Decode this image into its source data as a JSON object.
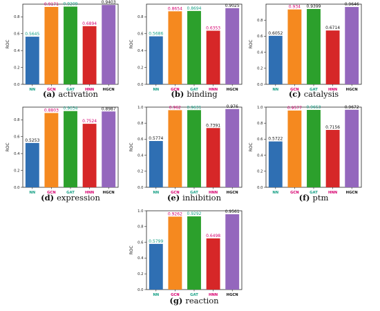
{
  "chart_data": [
    {
      "type": "bar",
      "caption_letter": "(a)",
      "caption_text": "activation",
      "ylabel": "ROC",
      "categories": [
        "NN",
        "GCN",
        "GAT",
        "HNN",
        "HGCN"
      ],
      "values": [
        0.5645,
        0.9171,
        0.9209,
        0.6894,
        0.9403
      ],
      "value_labels": [
        "0.5645",
        "0.9171",
        "0.9209",
        "0.6894",
        "0.9403"
      ],
      "yticks": [
        "0.0",
        "0.2",
        "0.4",
        "0.6",
        "0.8"
      ],
      "ylim": [
        0,
        0.95
      ],
      "grid": false,
      "label_colors": [
        "#16a085",
        "#d6006f",
        "#16a085",
        "#d6006f",
        "#111111"
      ]
    },
    {
      "type": "bar",
      "caption_letter": "(b)",
      "caption_text": "binding",
      "ylabel": "ROC",
      "categories": [
        "NN",
        "GCN",
        "GAT",
        "HNN",
        "HGCN"
      ],
      "values": [
        0.5686,
        0.8654,
        0.8694,
        0.6353,
        0.9025
      ],
      "value_labels": [
        "0.5686",
        "0.8654",
        "0.8694",
        "0.6353",
        "0.9025"
      ],
      "yticks": [
        "0.0",
        "0.2",
        "0.4",
        "0.6",
        "0.8"
      ],
      "ylim": [
        0,
        0.95
      ],
      "grid": false,
      "label_colors": [
        "#16a085",
        "#d6006f",
        "#16a085",
        "#d6006f",
        "#111111"
      ]
    },
    {
      "type": "bar",
      "caption_letter": "(c)",
      "caption_text": "catalysis",
      "ylabel": "ROC",
      "categories": [
        "NN",
        "GCN",
        "GAT",
        "HNN",
        "HGCN"
      ],
      "values": [
        0.6052,
        0.934,
        0.9399,
        0.6714,
        0.9646
      ],
      "value_labels": [
        "0.6052",
        "0.934",
        "0.9399",
        "0.6714",
        "0.9646"
      ],
      "yticks": [
        "0.0",
        "0.2",
        "0.4",
        "0.6",
        "0.8"
      ],
      "ylim": [
        0,
        1.0
      ],
      "grid": false,
      "label_colors": [
        "#111111",
        "#d6006f",
        "#111111",
        "#111111",
        "#111111"
      ]
    },
    {
      "type": "bar",
      "caption_letter": "(d)",
      "caption_text": "expression",
      "ylabel": "ROC",
      "categories": [
        "NN",
        "GCN",
        "GAT",
        "HNN",
        "HGCN"
      ],
      "values": [
        0.5253,
        0.8803,
        0.9034,
        0.7524,
        0.8987
      ],
      "value_labels": [
        "0.5253",
        "0.8803",
        "0.9034",
        "0.7524",
        "0.8987"
      ],
      "yticks": [
        "0.0",
        "0.2",
        "0.4",
        "0.6",
        "0.8"
      ],
      "ylim": [
        0,
        0.95
      ],
      "grid": false,
      "label_colors": [
        "#111111",
        "#d6006f",
        "#16a085",
        "#d6006f",
        "#111111"
      ]
    },
    {
      "type": "bar",
      "caption_letter": "(e)",
      "caption_text": "inhibition",
      "ylabel": "ROC",
      "categories": [
        "NN",
        "GCN",
        "GAT",
        "HNN",
        "HGCN"
      ],
      "values": [
        0.5774,
        0.962,
        0.9631,
        0.7391,
        0.976
      ],
      "value_labels": [
        "0.5774",
        "0.962",
        "0.9631",
        "0.7391",
        "0.976"
      ],
      "yticks": [
        "0.0",
        "0.2",
        "0.4",
        "0.6",
        "0.8",
        "1.0"
      ],
      "ylim": [
        0,
        1.0
      ],
      "grid": false,
      "label_colors": [
        "#111111",
        "#d6006f",
        "#16a085",
        "#111111",
        "#111111"
      ]
    },
    {
      "type": "bar",
      "caption_letter": "(f)",
      "caption_text": "ptm",
      "ylabel": "ROC",
      "categories": [
        "NN",
        "GCN",
        "GAT",
        "HNN",
        "HGCN"
      ],
      "values": [
        0.5722,
        0.9577,
        0.9653,
        0.7156,
        0.9672
      ],
      "value_labels": [
        "0.5722",
        "0.9577",
        "0.9653",
        "0.7156",
        "0.9672"
      ],
      "yticks": [
        "0.0",
        "0.2",
        "0.4",
        "0.6",
        "0.8",
        "1.0"
      ],
      "ylim": [
        0,
        1.0
      ],
      "grid": false,
      "label_colors": [
        "#111111",
        "#d6006f",
        "#16a085",
        "#111111",
        "#111111"
      ]
    },
    {
      "type": "bar",
      "caption_letter": "(g)",
      "caption_text": "reaction",
      "ylabel": "ROC",
      "categories": [
        "NN",
        "GCN",
        "GAT",
        "HNN",
        "HGCN"
      ],
      "values": [
        0.5799,
        0.9262,
        0.9292,
        0.6498,
        0.9561
      ],
      "value_labels": [
        "0.5799",
        "0.9262",
        "0.9292",
        "0.6498",
        "0.9561"
      ],
      "yticks": [
        "0.0",
        "0.2",
        "0.4",
        "0.6",
        "0.8",
        "1.0"
      ],
      "ylim": [
        0,
        1.0
      ],
      "grid": false,
      "label_colors": [
        "#16a085",
        "#d6006f",
        "#16a085",
        "#d6006f",
        "#111111"
      ]
    }
  ],
  "colors": {
    "NN": "#2f6fb3",
    "GCN": "#f5891f",
    "GAT": "#2ca02c",
    "HNN": "#d62728",
    "HGCN": "#9467bd",
    "cat_label_NN": "#16a085",
    "cat_label_GCN": "#d6006f",
    "cat_label_GAT": "#16a085",
    "cat_label_HNN": "#d6006f",
    "cat_label_HGCN": "#111111"
  }
}
